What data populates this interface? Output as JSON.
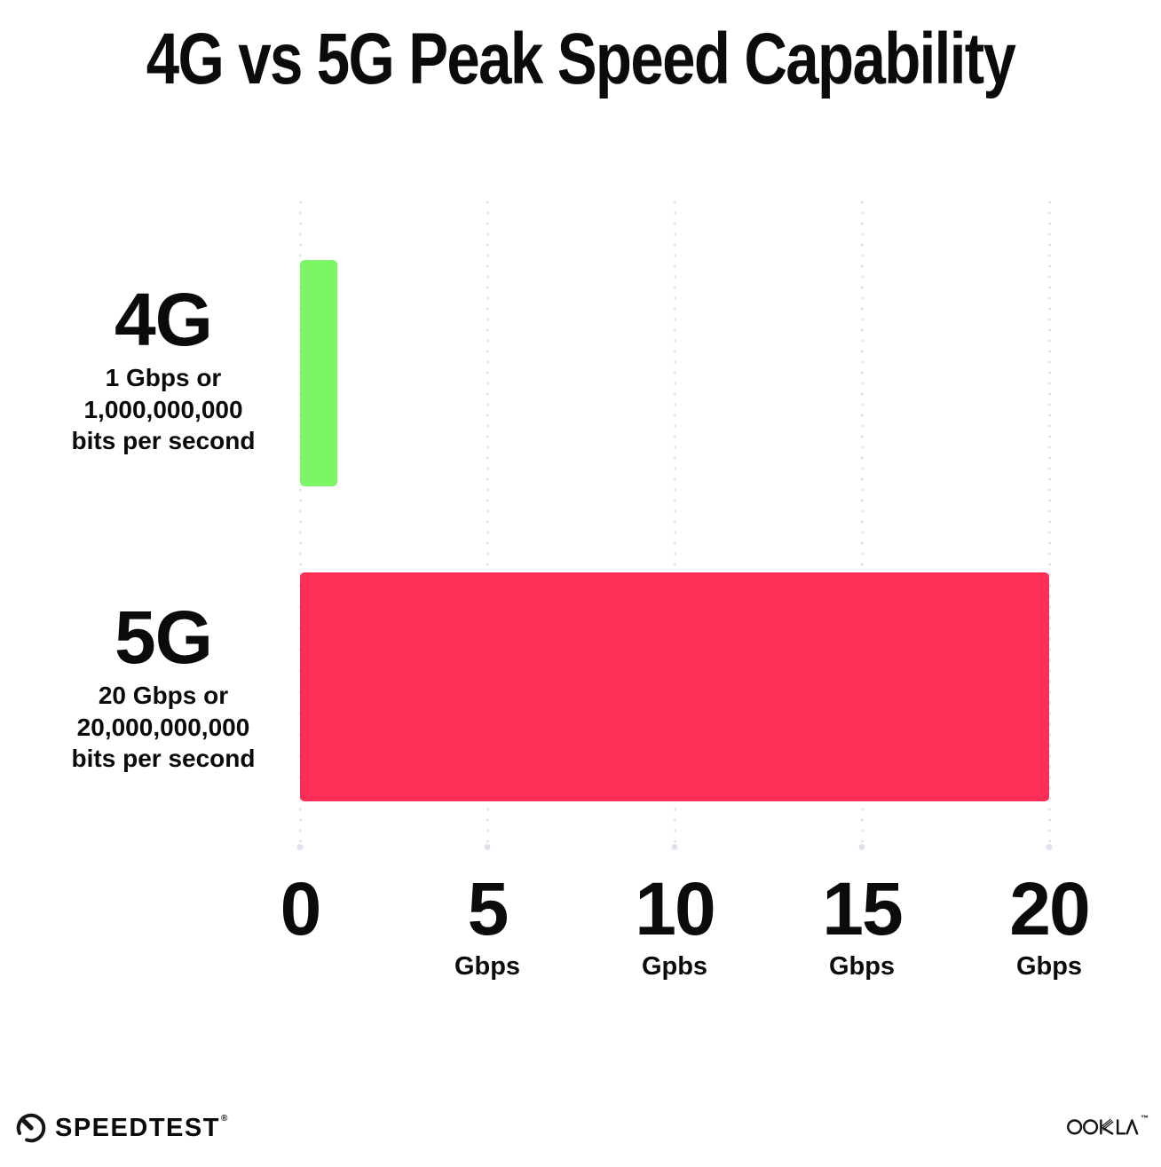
{
  "title": "4G vs 5G Peak Speed Capability",
  "chart_data": {
    "type": "bar",
    "orientation": "horizontal",
    "title": "4G vs 5G Peak Speed Capability",
    "categories": [
      "4G",
      "5G"
    ],
    "values": [
      1,
      20
    ],
    "value_unit": "Gbps",
    "bar_colors": [
      "#7DF666",
      "#FE2E56"
    ],
    "category_labels": [
      {
        "name": "4G",
        "sublines": [
          "1 Gbps or",
          "1,000,000,000",
          "bits per second"
        ]
      },
      {
        "name": "5G",
        "sublines": [
          "20 Gbps or",
          "20,000,000,000",
          "bits per second"
        ]
      }
    ],
    "xlim": [
      0,
      20
    ],
    "x_ticks": [
      {
        "value": 0,
        "label": "0",
        "unit": ""
      },
      {
        "value": 5,
        "label": "5",
        "unit": "Gbps"
      },
      {
        "value": 10,
        "label": "10",
        "unit": "Gpbs"
      },
      {
        "value": 15,
        "label": "15",
        "unit": "Gbps"
      },
      {
        "value": 20,
        "label": "20",
        "unit": "Gbps"
      }
    ],
    "grid": "dotted-vertical",
    "gridline_color": "#E1E1ED",
    "background": "#FFFFFF",
    "text_color": "#0B0B0B",
    "legend": "none"
  },
  "footer": {
    "speedtest_label": "SPEEDTEST",
    "speedtest_mark": "®",
    "ookla_label": "OOKLA",
    "ookla_mark": "™"
  }
}
